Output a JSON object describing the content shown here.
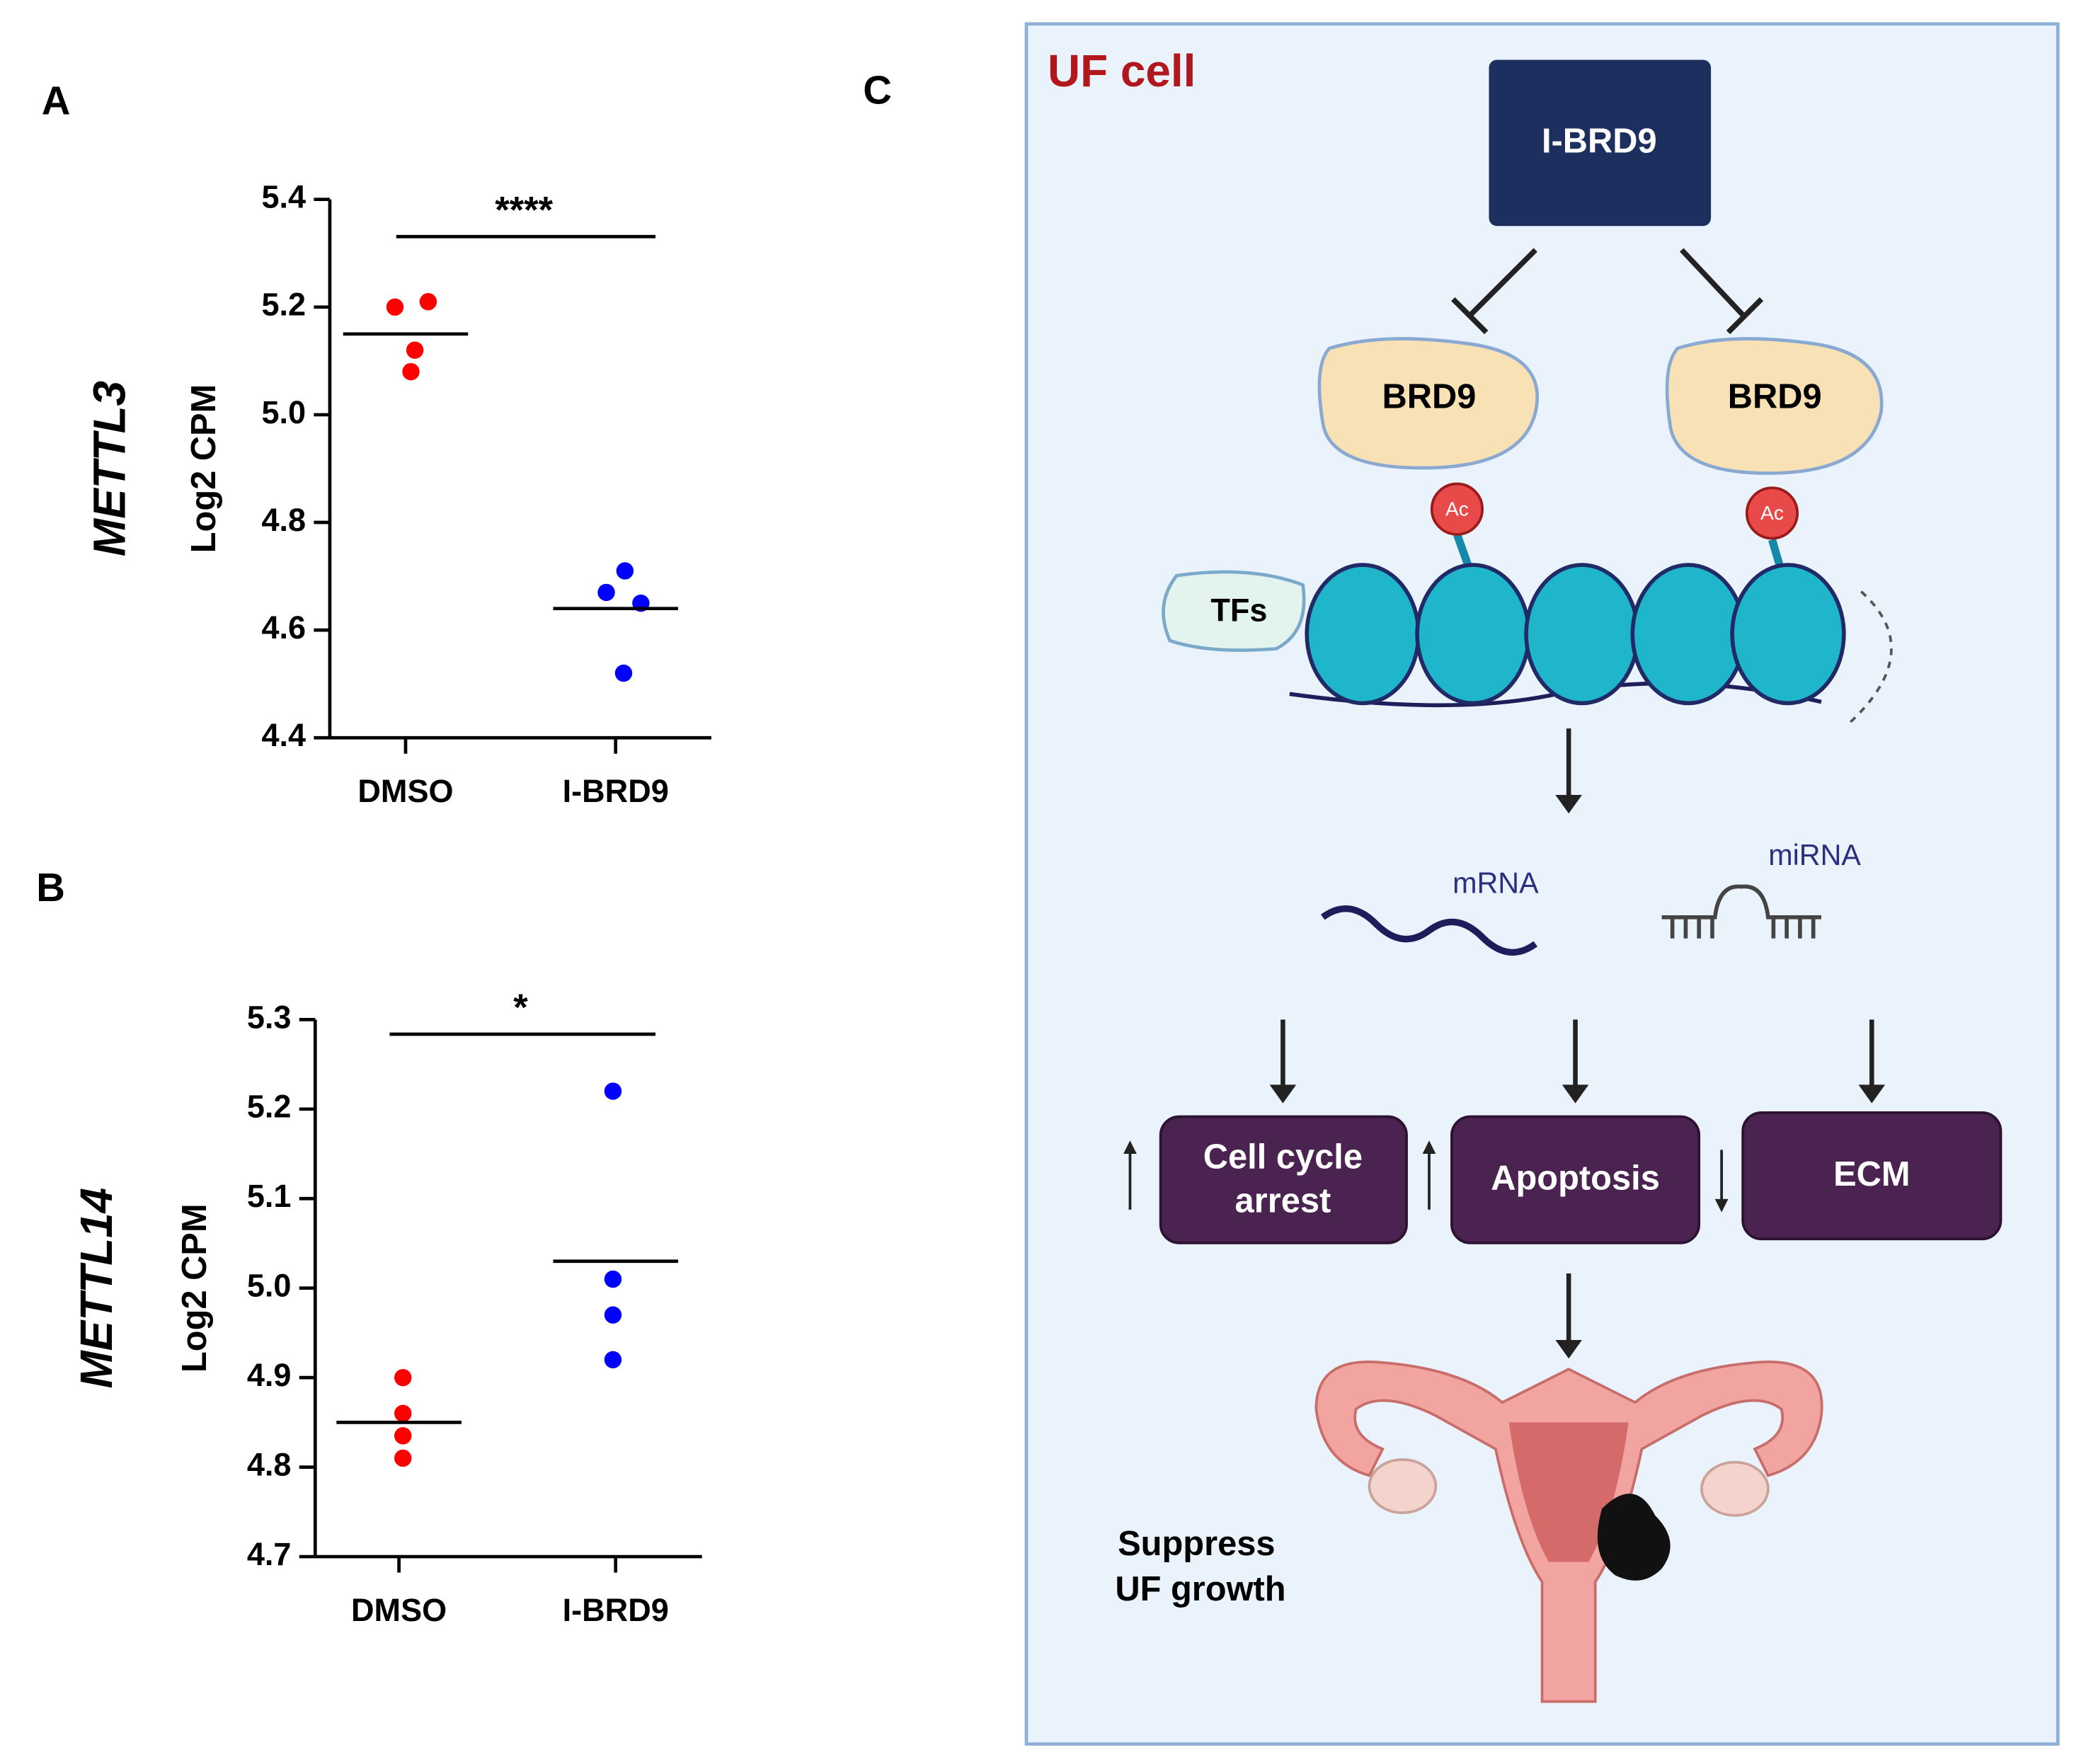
{
  "chart_data": [
    {
      "type": "dot",
      "panel": "A",
      "title": "METTL3",
      "y_label": "Log2 CPM",
      "categories": [
        "DMSO",
        "I-BRD9"
      ],
      "points": [
        [
          5.2,
          5.21,
          5.12,
          5.08
        ],
        [
          4.71,
          4.67,
          4.65,
          4.52
        ]
      ],
      "means": [
        5.15,
        4.64
      ],
      "colors": [
        "#ff0000",
        "#0000ff"
      ],
      "significance": "****",
      "ylim": [
        4.4,
        5.4
      ],
      "yticks": [
        4.4,
        4.6,
        4.8,
        {
          "value": 5,
          "label": "5.0"
        },
        5.2,
        5.4
      ]
    },
    {
      "type": "dot",
      "panel": "B",
      "title": "METTL14",
      "y_label": "Log2 CPM",
      "categories": [
        "DMSO",
        "I-BRD9"
      ],
      "points": [
        [
          4.9,
          4.86,
          4.835,
          4.81
        ],
        [
          5.22,
          5.01,
          4.97,
          4.92
        ]
      ],
      "means": [
        4.85,
        5.03
      ],
      "colors": [
        "#ff0000",
        "#0000ff"
      ],
      "significance": "*",
      "ylim": [
        4.7,
        5.3
      ],
      "yticks": [
        4.7,
        4.8,
        4.9,
        {
          "value": 5,
          "label": "5.0"
        },
        5.1,
        5.2,
        5.3
      ]
    }
  ],
  "diagram": {
    "panel": "C",
    "title": "UF cell",
    "drug": "I-BRD9",
    "protein_left": "BRD9",
    "protein_right": "BRD9",
    "ac_left": "Ac",
    "ac_right": "Ac",
    "tfs": "TFs",
    "mrna": "mRNA",
    "mirna": "miRNA",
    "outcomes": [
      [
        "Cell cycle",
        "arrest"
      ],
      [
        "Apoptosis"
      ],
      [
        "ECM"
      ]
    ],
    "result": [
      "Suppress",
      "UF growth"
    ]
  }
}
